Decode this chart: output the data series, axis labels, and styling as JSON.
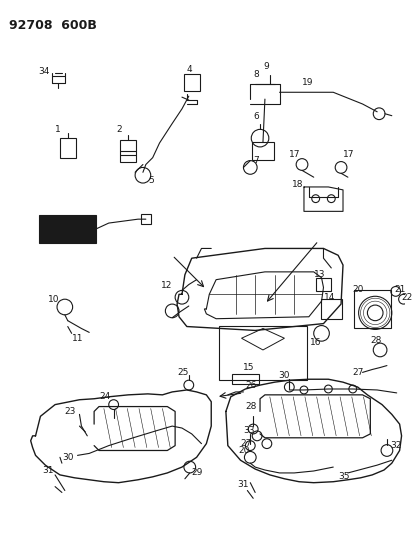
{
  "title": "92708  600B",
  "bg_color": "#ffffff",
  "line_color": "#1a1a1a",
  "fig_width": 4.14,
  "fig_height": 5.33,
  "dpi": 100,
  "title_fontsize": 9,
  "title_fontweight": "bold"
}
